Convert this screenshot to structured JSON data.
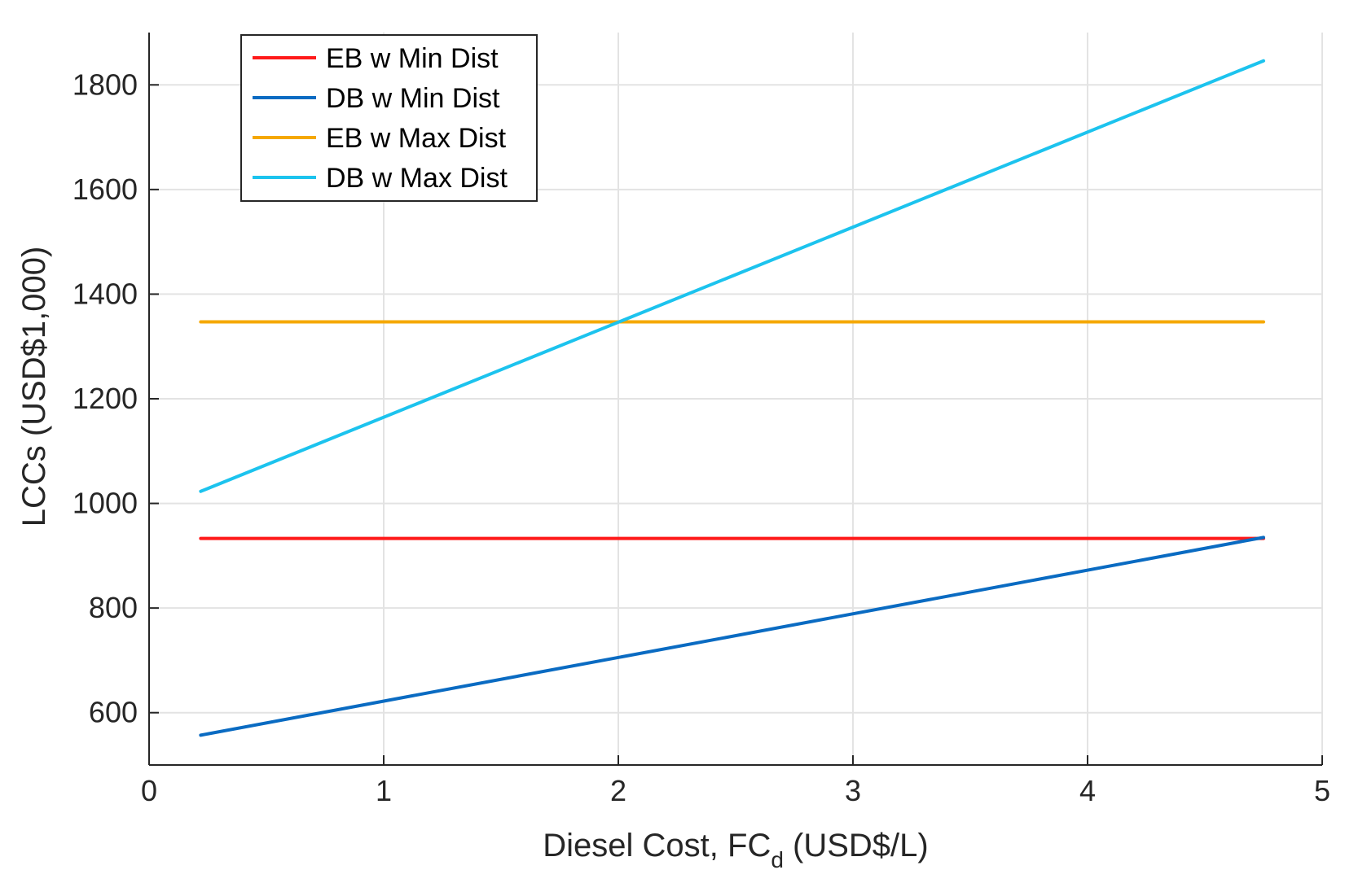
{
  "chart_data": {
    "type": "line",
    "title": "",
    "xlabel": "Diesel Cost, FC",
    "xlabel_subscript": "d",
    "xlabel_suffix": " (USD$/L)",
    "ylabel": "LCCs (USD$1,000)",
    "xlim": [
      0,
      5
    ],
    "ylim": [
      500,
      1900
    ],
    "xticks": [
      0,
      1,
      2,
      3,
      4,
      5
    ],
    "xtick_labels": [
      "0",
      "1",
      "2",
      "3",
      "4",
      "5"
    ],
    "yticks": [
      600,
      800,
      1000,
      1200,
      1400,
      1600,
      1800
    ],
    "ytick_labels": [
      "600",
      "800",
      "1000",
      "1200",
      "1400",
      "1600",
      "1800"
    ],
    "grid": true,
    "legend_position": "top-left",
    "series": [
      {
        "name": "EB w Min Dist",
        "color": "#ff1a1a",
        "x": [
          0.22,
          4.75
        ],
        "y": [
          933,
          933
        ]
      },
      {
        "name": "DB w Min Dist",
        "color": "#0a6bc2",
        "x": [
          0.22,
          4.75
        ],
        "y": [
          557,
          935
        ]
      },
      {
        "name": "EB w Max Dist",
        "color": "#f5a800",
        "x": [
          0.22,
          4.75
        ],
        "y": [
          1347,
          1347
        ]
      },
      {
        "name": "DB w Max Dist",
        "color": "#1cc3ee",
        "x": [
          0.22,
          4.75
        ],
        "y": [
          1023,
          1846
        ]
      }
    ]
  }
}
